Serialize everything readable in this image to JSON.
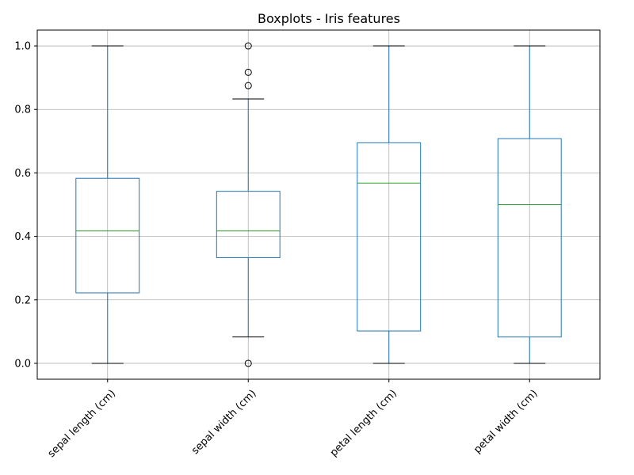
{
  "chart_data": {
    "type": "boxplot",
    "title": "Boxplots - Iris features",
    "xlabel": "",
    "ylabel": "",
    "ylim": [
      -0.05,
      1.05
    ],
    "yticks": [
      0.0,
      0.2,
      0.4,
      0.6,
      0.8,
      1.0
    ],
    "ytick_labels": [
      "0.0",
      "0.2",
      "0.4",
      "0.6",
      "0.8",
      "1.0"
    ],
    "grid": true,
    "box_color": "#1f77b4",
    "median_color": "#2ca02c",
    "cap_color": "#000000",
    "categories": [
      "sepal length (cm)",
      "sepal width (cm)",
      "petal length (cm)",
      "petal width (cm)"
    ],
    "boxes": [
      {
        "whisker_low": 0.0,
        "q1": 0.222,
        "median": 0.417,
        "q3": 0.583,
        "whisker_high": 1.0,
        "outliers": []
      },
      {
        "whisker_low": 0.083,
        "q1": 0.333,
        "median": 0.417,
        "q3": 0.542,
        "whisker_high": 0.833,
        "outliers": [
          1.0,
          0.917,
          0.875,
          0.0
        ]
      },
      {
        "whisker_low": 0.0,
        "q1": 0.102,
        "median": 0.568,
        "q3": 0.695,
        "whisker_high": 1.0,
        "outliers": []
      },
      {
        "whisker_low": 0.0,
        "q1": 0.083,
        "median": 0.5,
        "q3": 0.708,
        "whisker_high": 1.0,
        "outliers": []
      }
    ]
  }
}
